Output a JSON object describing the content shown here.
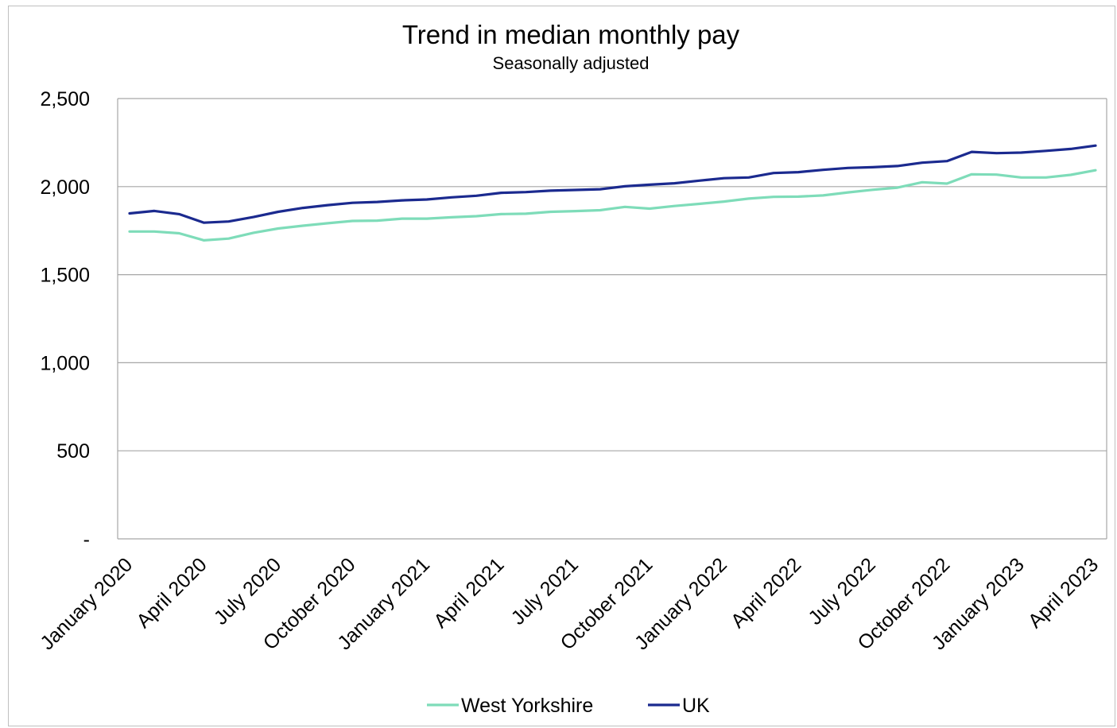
{
  "chart_data": {
    "type": "line",
    "title": "Trend in median monthly pay",
    "subtitle": "Seasonally adjusted",
    "xlabel": "",
    "ylabel": "",
    "ylim": [
      0,
      2500
    ],
    "y_ticks": [
      0,
      500,
      1000,
      1500,
      2000,
      2500
    ],
    "y_tick_labels": [
      "-",
      "500",
      "1,000",
      "1,500",
      "2,000",
      "2,500"
    ],
    "grid": "horizontal",
    "legend_position": "bottom",
    "x": [
      "January 2020",
      "February 2020",
      "March 2020",
      "April 2020",
      "May 2020",
      "June 2020",
      "July 2020",
      "August 2020",
      "September 2020",
      "October 2020",
      "November 2020",
      "December 2020",
      "January 2021",
      "February 2021",
      "March 2021",
      "April 2021",
      "May 2021",
      "June 2021",
      "July 2021",
      "August 2021",
      "September 2021",
      "October 2021",
      "November 2021",
      "December 2021",
      "January 2022",
      "February 2022",
      "March 2022",
      "April 2022",
      "May 2022",
      "June 2022",
      "July 2022",
      "August 2022",
      "September 2022",
      "October 2022",
      "November 2022",
      "December 2022",
      "January 2023",
      "February 2023",
      "March 2023",
      "April 2023"
    ],
    "x_tick_labels": [
      "January 2020",
      "April 2020",
      "July 2020",
      "October 2020",
      "January 2021",
      "April 2021",
      "July 2021",
      "October 2021",
      "January 2022",
      "April 2022",
      "July 2022",
      "October 2022",
      "January 2023",
      "April 2023"
    ],
    "series": [
      {
        "name": "West Yorkshire",
        "color": "#7edcb9",
        "values": [
          1745,
          1745,
          1735,
          1695,
          1705,
          1738,
          1762,
          1778,
          1792,
          1805,
          1807,
          1818,
          1818,
          1826,
          1832,
          1844,
          1846,
          1857,
          1861,
          1866,
          1885,
          1875,
          1890,
          1902,
          1915,
          1932,
          1942,
          1943,
          1950,
          1967,
          1982,
          1994,
          2025,
          2017,
          2070,
          2068,
          2052,
          2052,
          2067,
          2093
        ]
      },
      {
        "name": "UK",
        "color": "#1b2a8f",
        "values": [
          1848,
          1862,
          1844,
          1795,
          1802,
          1827,
          1857,
          1879,
          1895,
          1908,
          1913,
          1922,
          1927,
          1939,
          1948,
          1965,
          1969,
          1977,
          1981,
          1985,
          2002,
          2011,
          2019,
          2034,
          2048,
          2052,
          2077,
          2082,
          2095,
          2106,
          2110,
          2117,
          2136,
          2145,
          2197,
          2190,
          2193,
          2203,
          2214,
          2233
        ]
      }
    ]
  }
}
